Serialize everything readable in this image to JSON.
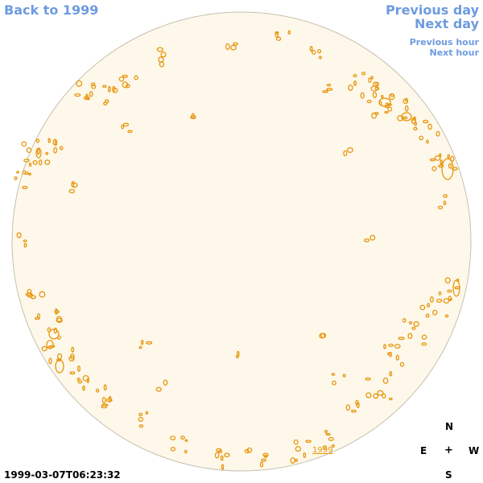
{
  "nav": {
    "back": "Back to 1999",
    "previous_day": "Previous day",
    "next_day": "Next day",
    "previous_hour": "Previous hour",
    "next_hour": "Next hour"
  },
  "compass": {
    "north": "N",
    "east": "E",
    "center": "+",
    "west": "W",
    "south": "S"
  },
  "timestamp": "1999-03-07T06:23:32",
  "disc_label": "1999",
  "colors": {
    "link": "#6e9be0",
    "disc_fill": "#fdf8ea",
    "contour": "#e8960f"
  }
}
